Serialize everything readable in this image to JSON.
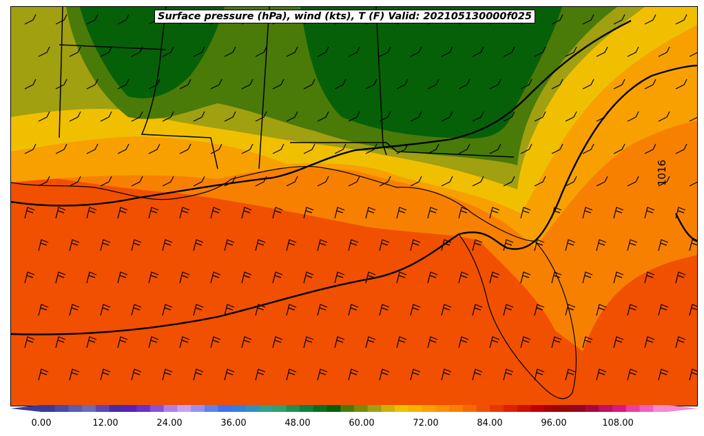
{
  "title": "Surface pressure (hPa), wind (kts), T (F) Valid: 202105130000f025",
  "isobar_label": "1016",
  "colorbar": {
    "tick_labels": [
      "0.00",
      "12.00",
      "24.00",
      "36.00",
      "48.00",
      "60.00",
      "72.00",
      "84.00",
      "96.00",
      "108.00"
    ],
    "colors": [
      "#3a3a9a",
      "#4a4aa6",
      "#5c5cb0",
      "#6b6bb8",
      "#5a48b0",
      "#4a2aa8",
      "#5a20b8",
      "#6a30c8",
      "#8a50d8",
      "#b080e8",
      "#c8a0f0",
      "#9890f0",
      "#6080f0",
      "#4070f0",
      "#3080e0",
      "#3090c0",
      "#30a090",
      "#30a070",
      "#209050",
      "#108040",
      "#087020",
      "#066008",
      "#4a7a08",
      "#7a8a08",
      "#a0a010",
      "#d0b008",
      "#f0c000",
      "#f8b000",
      "#f8a000",
      "#f89000",
      "#f88000",
      "#f86800",
      "#f05000",
      "#e83800",
      "#e02000",
      "#d01000",
      "#c00000",
      "#a80000",
      "#980808",
      "#900820",
      "#a80840",
      "#c01060",
      "#d81880",
      "#e840a0",
      "#f060c0",
      "#f888d0"
    ],
    "levels_color_hex": {
      "low_green": "#066008",
      "mid_green": "#4a7a08",
      "olive": "#a0a010",
      "yellow": "#f0c000",
      "orange": "#f8a000",
      "dark_orange": "#f88000",
      "red_orange": "#f05000",
      "red": "#e02000"
    }
  }
}
